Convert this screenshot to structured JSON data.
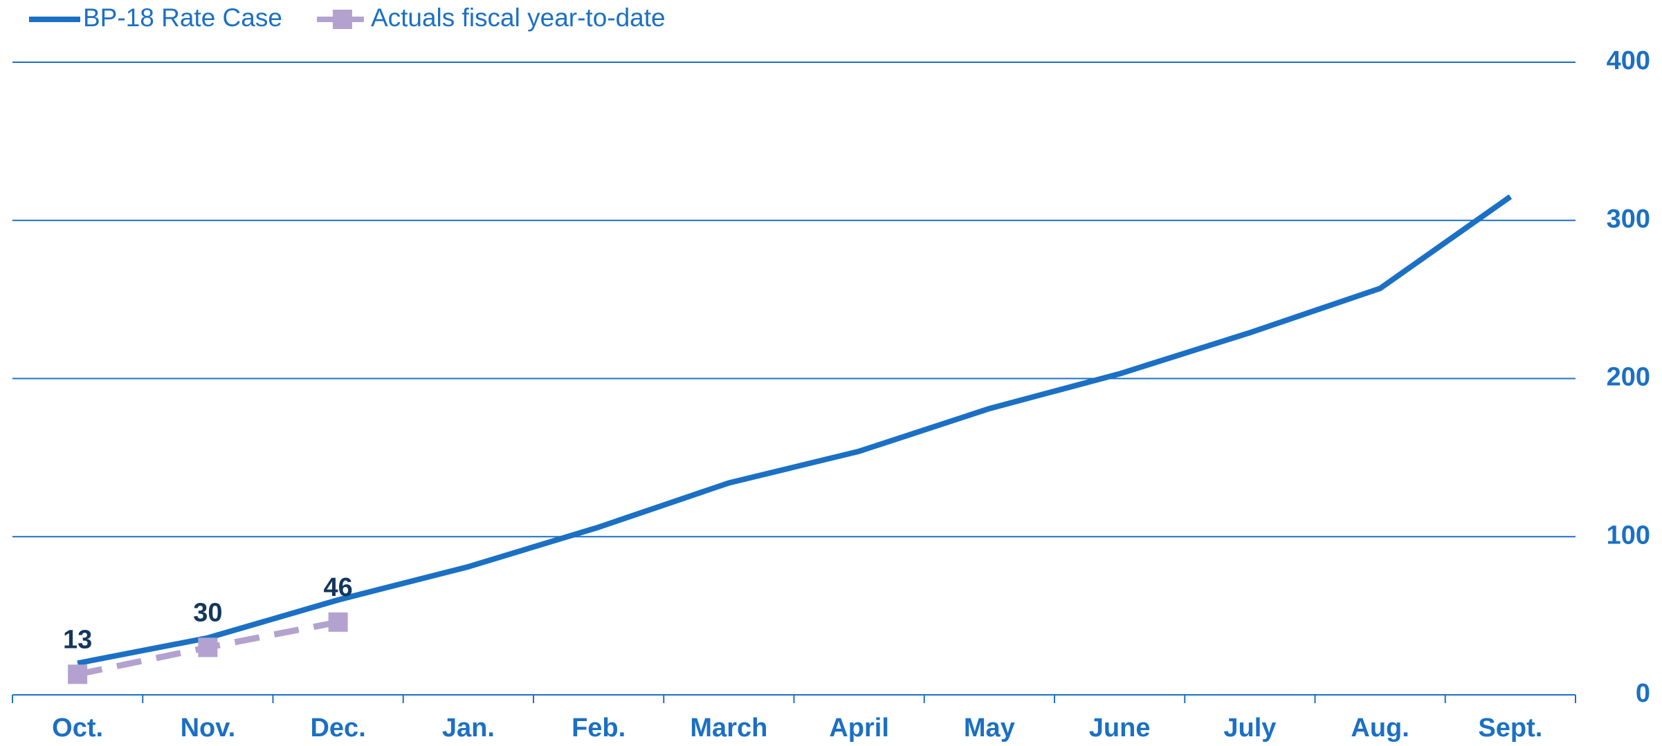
{
  "chart_data": {
    "type": "line",
    "categories": [
      "Oct.",
      "Nov.",
      "Dec.",
      "Jan.",
      "Feb.",
      "March",
      "April",
      "May",
      "June",
      "July",
      "Aug.",
      "Sept."
    ],
    "series": [
      {
        "name": "BP-18 Rate Case",
        "color": "#1b70c4",
        "values": [
          20,
          36,
          60,
          81,
          106,
          134,
          154,
          181,
          203,
          229,
          257,
          315
        ]
      },
      {
        "name": "Actuals fiscal year-to-date",
        "color": "#b3a2cf",
        "values": [
          13,
          30,
          46,
          null,
          null,
          null,
          null,
          null,
          null,
          null,
          null,
          null
        ],
        "data_labels": true
      }
    ],
    "ylim": [
      0,
      400
    ],
    "yticks": [
      0,
      100,
      200,
      300,
      400
    ],
    "grid": true,
    "y_axis_side": "right",
    "legend": "top-left"
  }
}
